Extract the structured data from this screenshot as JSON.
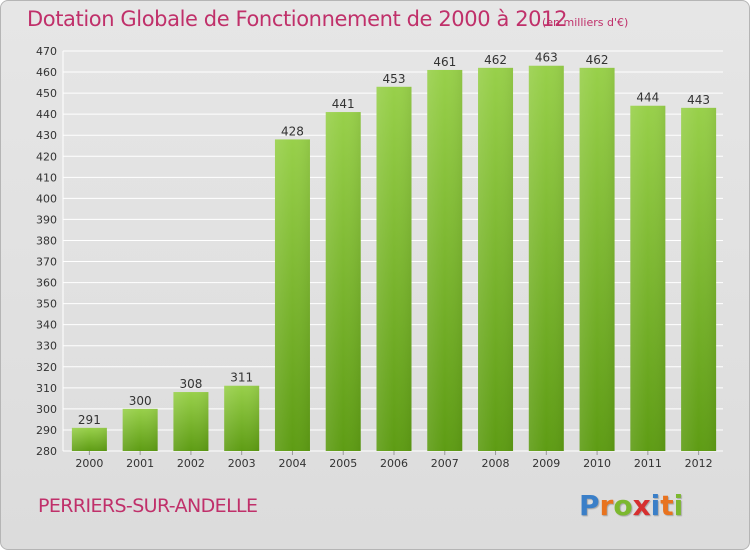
{
  "title": "Dotation Globale de Fonctionnement de 2000 à 2012",
  "subtitle": "(en milliers d'€)",
  "commune": "PERRIERS-SUR-ANDELLE",
  "logo": {
    "letters": [
      "P",
      "r",
      "o",
      "x",
      "i",
      "t",
      "i"
    ],
    "colors": [
      "#3a7fc8",
      "#e8731f",
      "#7cb82f",
      "#d62f2f",
      "#3a7fc8",
      "#e8731f",
      "#7cb82f"
    ]
  },
  "colors": {
    "title": "#c0306a",
    "bar_top": "#98d04a",
    "bar_bottom": "#5e9c14",
    "grid": "#ffffff",
    "background": "#e2e2e2"
  },
  "chart_data": {
    "type": "bar",
    "title": "Dotation Globale de Fonctionnement de 2000 à 2012",
    "categories": [
      "2000",
      "2001",
      "2002",
      "2003",
      "2004",
      "2005",
      "2006",
      "2007",
      "2008",
      "2009",
      "2010",
      "2011",
      "2012"
    ],
    "values": [
      291,
      300,
      308,
      311,
      428,
      441,
      453,
      461,
      462,
      463,
      462,
      444,
      443
    ],
    "ylim": [
      280,
      470
    ],
    "yticks": [
      280,
      290,
      300,
      310,
      320,
      330,
      340,
      350,
      360,
      370,
      380,
      390,
      400,
      410,
      420,
      430,
      440,
      450,
      460,
      470
    ],
    "grid": true,
    "xlabel": "",
    "ylabel": ""
  }
}
